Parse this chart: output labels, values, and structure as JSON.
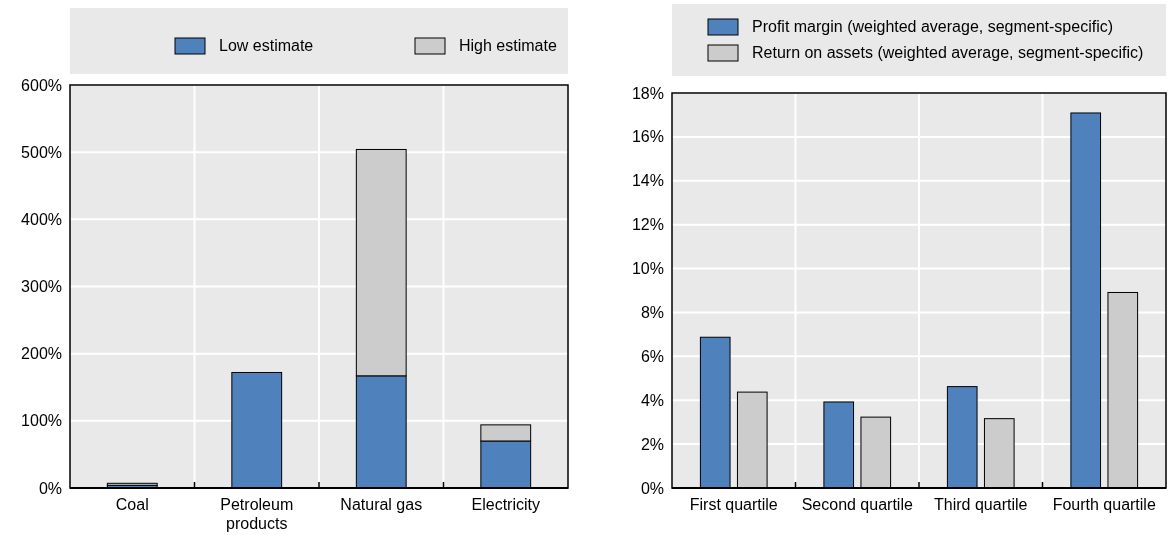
{
  "chart_data": [
    {
      "type": "bar",
      "stacked": true,
      "categories": [
        "Coal",
        "Petroleum products",
        "Natural gas",
        "Electricity"
      ],
      "series": [
        {
          "name": "Low estimate",
          "color": "#4f81bd",
          "values": [
            4,
            172,
            167,
            70
          ]
        },
        {
          "name": "High estimate",
          "color": "#cccccc",
          "values": [
            3,
            0,
            337,
            24
          ]
        }
      ],
      "ylim": [
        0,
        600
      ],
      "yticks": [
        {
          "value": 0,
          "label": "0%"
        },
        {
          "value": 100,
          "label": "100%"
        },
        {
          "value": 200,
          "label": "200%"
        },
        {
          "value": 300,
          "label": "300%"
        },
        {
          "value": 400,
          "label": "400%"
        },
        {
          "value": 500,
          "label": "500%"
        },
        {
          "value": 600,
          "label": "600%"
        }
      ],
      "grid": true,
      "legend": "top"
    },
    {
      "type": "bar",
      "categories": [
        "First quartile",
        "Second quartile",
        "Third quartile",
        "Fourth quartile"
      ],
      "series": [
        {
          "name": "Profit margin (weighted average, segment-specific)",
          "color": "#4f81bd",
          "values": [
            6.87,
            3.92,
            4.62,
            17.09
          ]
        },
        {
          "name": "Return on assets (weighted average, segment-specific)",
          "color": "#cccccc",
          "values": [
            4.37,
            3.23,
            3.16,
            8.91
          ]
        }
      ],
      "ylim": [
        0,
        18
      ],
      "yticks": [
        {
          "value": 0,
          "label": "0%"
        },
        {
          "value": 2,
          "label": "2%"
        },
        {
          "value": 4,
          "label": "4%"
        },
        {
          "value": 6,
          "label": "6%"
        },
        {
          "value": 8,
          "label": "8%"
        },
        {
          "value": 10,
          "label": "10%"
        },
        {
          "value": 12,
          "label": "12%"
        },
        {
          "value": 14,
          "label": "14%"
        },
        {
          "value": 16,
          "label": "16%"
        },
        {
          "value": 18,
          "label": "18%"
        }
      ],
      "grid": true,
      "legend": "top"
    }
  ]
}
